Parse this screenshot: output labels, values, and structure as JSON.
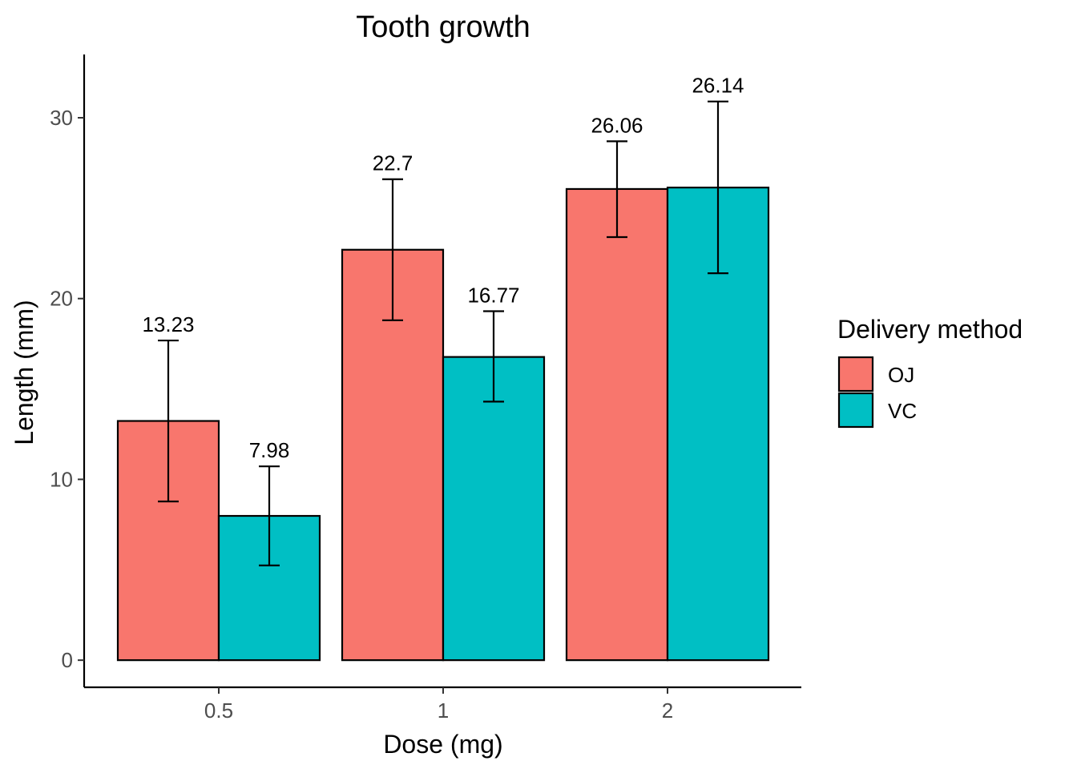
{
  "chart_data": {
    "type": "bar",
    "title": "Tooth growth",
    "xlabel": "Dose (mg)",
    "ylabel": "Length (mm)",
    "categories": [
      "0.5",
      "1",
      "2"
    ],
    "ylim": [
      -1.5,
      33.5
    ],
    "yticks": [
      0,
      10,
      20,
      30
    ],
    "grid": false,
    "legend": {
      "title": "Delivery method",
      "placement": "right"
    },
    "series": [
      {
        "name": "OJ",
        "color": "#F8766D",
        "values": [
          13.23,
          22.7,
          26.06
        ],
        "err_low": [
          8.78,
          18.8,
          23.4
        ],
        "err_high": [
          17.68,
          26.6,
          28.7
        ]
      },
      {
        "name": "VC",
        "color": "#00BFC4",
        "values": [
          7.98,
          16.77,
          26.14
        ],
        "err_low": [
          5.24,
          14.3,
          21.4
        ],
        "err_high": [
          10.72,
          19.3,
          30.9
        ]
      }
    ],
    "data_labels": [
      [
        "13.23",
        "22.7",
        "26.06"
      ],
      [
        "7.98",
        "16.77",
        "26.14"
      ]
    ]
  }
}
